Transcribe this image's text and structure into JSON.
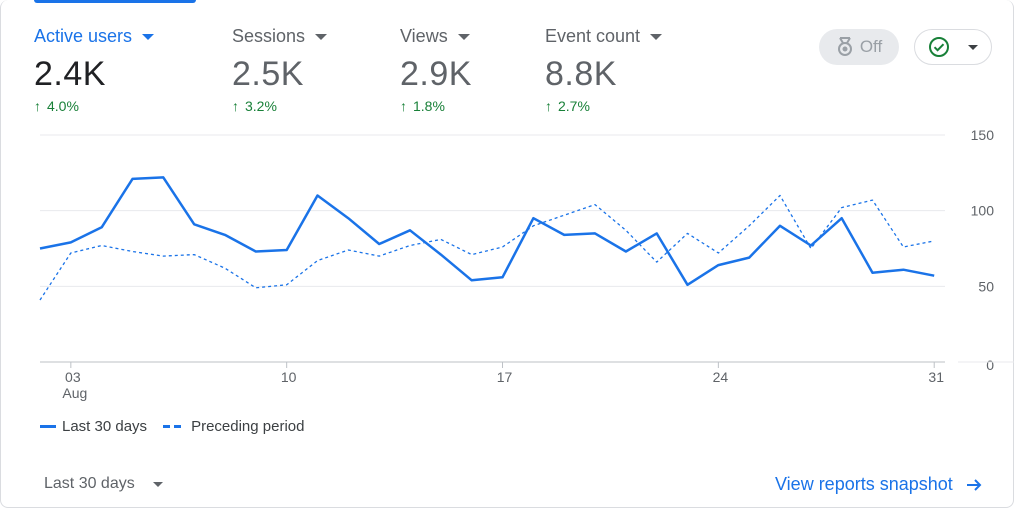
{
  "metrics": [
    {
      "label": "Active users",
      "value": "2.4K",
      "delta": "4.0%"
    },
    {
      "label": "Sessions",
      "value": "2.5K",
      "delta": "3.2%"
    },
    {
      "label": "Views",
      "value": "2.9K",
      "delta": "1.8%"
    },
    {
      "label": "Event count",
      "value": "8.8K",
      "delta": "2.7%"
    }
  ],
  "controls": {
    "off_label": "Off",
    "off_icon": "ribbon-award-icon",
    "status_icon": "check-circle-icon"
  },
  "colors": {
    "accent": "#1a73e8",
    "positive": "#188038",
    "status_ok": "#188038"
  },
  "chart_data": {
    "type": "line",
    "x": [
      2,
      3,
      4,
      5,
      6,
      7,
      8,
      9,
      10,
      11,
      12,
      13,
      14,
      15,
      16,
      17,
      18,
      19,
      20,
      21,
      22,
      23,
      24,
      25,
      26,
      27,
      28,
      29,
      30,
      31
    ],
    "x_ticks": [
      {
        "x": 3,
        "label": "03",
        "sublabel": "Aug"
      },
      {
        "x": 10,
        "label": "10",
        "sublabel": ""
      },
      {
        "x": 17,
        "label": "17",
        "sublabel": ""
      },
      {
        "x": 24,
        "label": "24",
        "sublabel": ""
      },
      {
        "x": 31,
        "label": "31",
        "sublabel": ""
      }
    ],
    "y_ticks": [
      "0",
      "50",
      "100",
      "150"
    ],
    "ylim": [
      0,
      150
    ],
    "grid": true,
    "legend_position": "bottom-left",
    "series": [
      {
        "name": "Last 30 days",
        "style": "solid",
        "values": [
          75,
          79,
          89,
          121,
          122,
          91,
          84,
          73,
          74,
          110,
          95,
          78,
          87,
          71,
          54,
          56,
          95,
          84,
          85,
          73,
          85,
          51,
          64,
          69,
          90,
          77,
          95,
          59,
          61,
          57
        ]
      },
      {
        "name": "Preceding period",
        "style": "dashed",
        "values": [
          41,
          72,
          77,
          73,
          70,
          71,
          62,
          49,
          51,
          67,
          74,
          70,
          77,
          81,
          71,
          76,
          90,
          97,
          104,
          87,
          66,
          85,
          72,
          90,
          110,
          75,
          102,
          107,
          76,
          80
        ]
      }
    ]
  },
  "footer": {
    "range_label": "Last 30 days",
    "link_label": "View reports snapshot"
  }
}
